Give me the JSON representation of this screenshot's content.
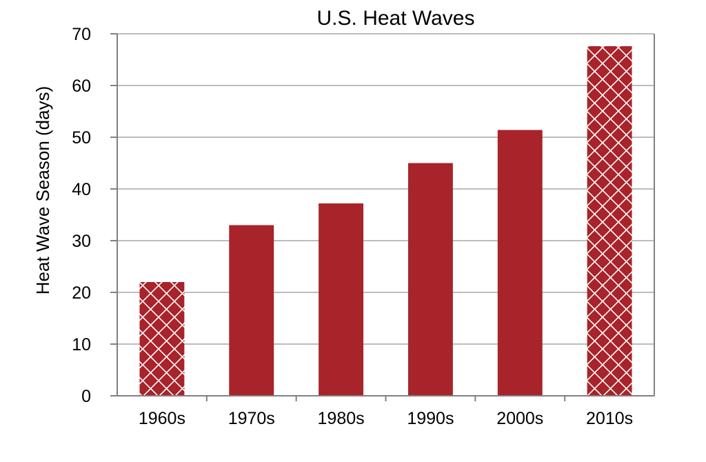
{
  "chart_data": {
    "type": "bar",
    "title": "U.S. Heat Waves",
    "xlabel": "",
    "ylabel": "Heat Wave Season (days)",
    "categories": [
      "1960s",
      "1970s",
      "1980s",
      "1990s",
      "2000s",
      "2010s"
    ],
    "values": [
      22,
      33,
      37.2,
      45,
      51.4,
      67.6
    ],
    "hatched": [
      true,
      false,
      false,
      false,
      false,
      true
    ],
    "ylim": [
      0,
      70
    ],
    "yticks": [
      0,
      10,
      20,
      30,
      40,
      50,
      60,
      70
    ],
    "grid": true,
    "legend": "none",
    "colors": {
      "bar": "#a8232a",
      "hatch": "#ffffff",
      "grid": "#a6a6a6",
      "axis": "#808080"
    }
  }
}
